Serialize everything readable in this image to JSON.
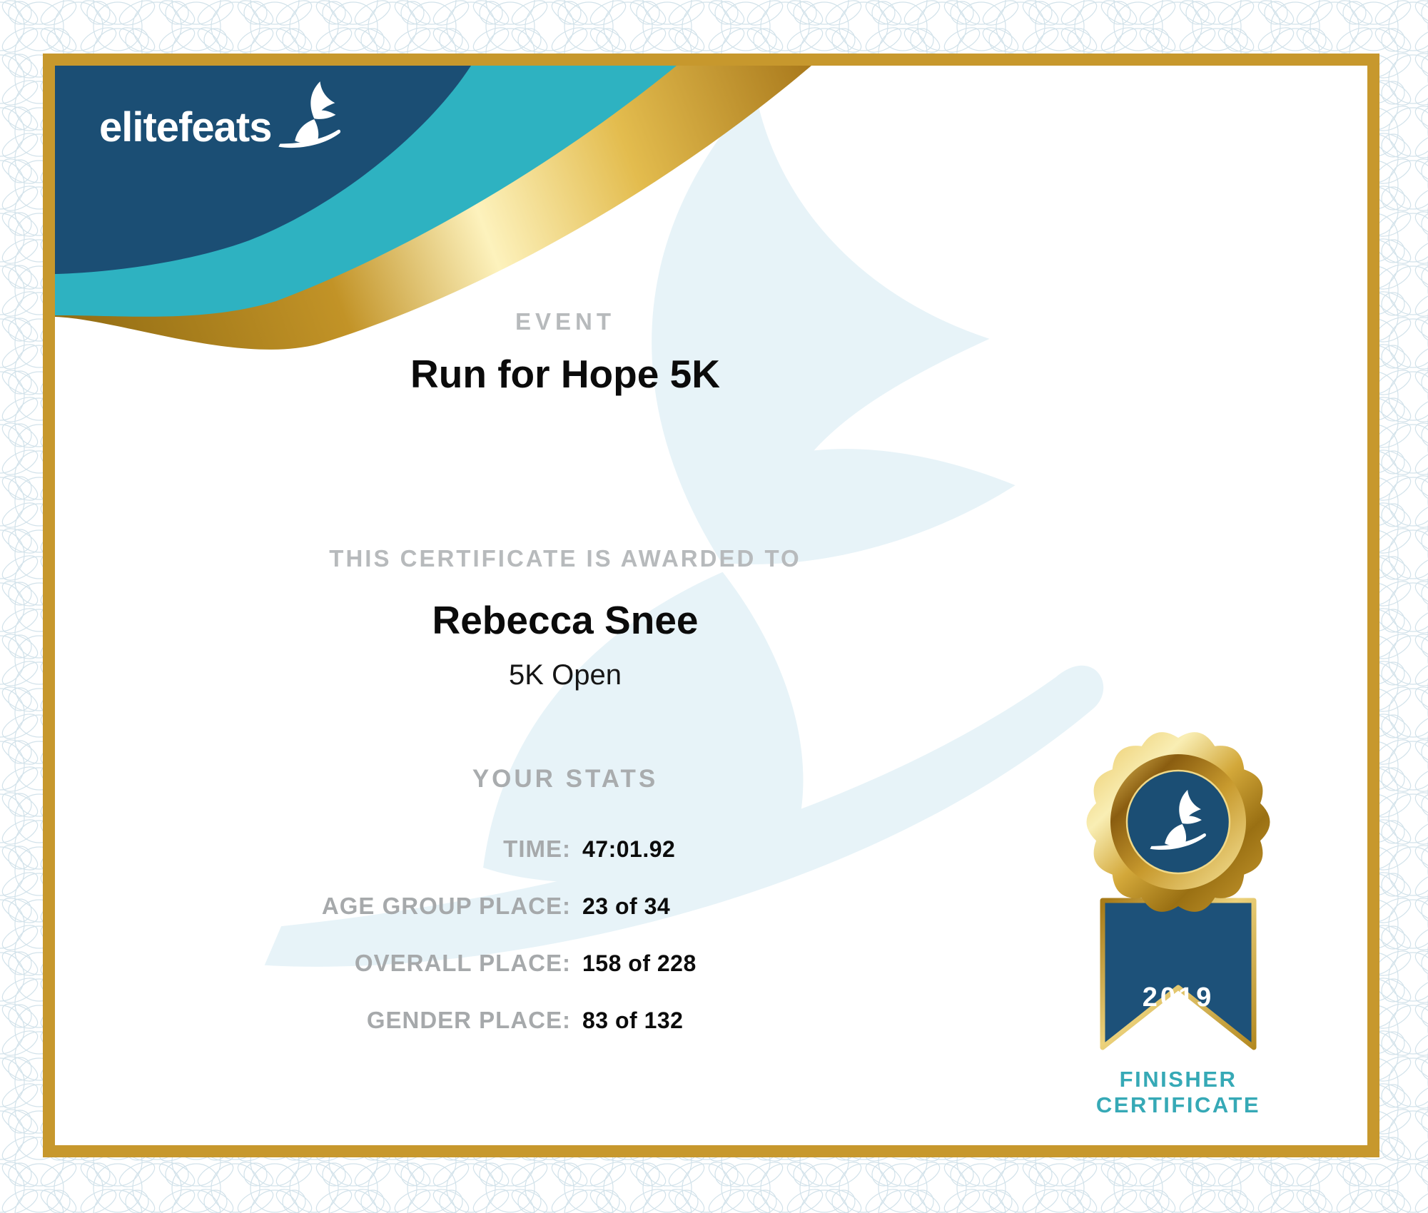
{
  "brand": {
    "name": "elitefeats",
    "icon": "winged-foot-icon"
  },
  "certificate": {
    "event_label": "EVENT",
    "event_name": "Run for Hope 5K",
    "awarded_to_label": "THIS CERTIFICATE IS AWARDED TO",
    "recipient_name": "Rebecca Snee",
    "division": "5K Open",
    "stats_heading": "YOUR STATS",
    "stats": [
      {
        "label": "TIME:",
        "value": "47:01.92"
      },
      {
        "label": "AGE GROUP PLACE:",
        "value": "23 of 34"
      },
      {
        "label": "OVERALL PLACE:",
        "value": "158 of 228"
      },
      {
        "label": "GENDER PLACE:",
        "value": "83 of 132"
      }
    ],
    "badge": {
      "year": "2019",
      "caption_line1": "FINISHER",
      "caption_line2": "CERTIFICATE",
      "icon": "winged-foot-icon"
    }
  },
  "colors": {
    "navy": "#1b4e74",
    "teal": "#2eb2c1",
    "frame_gold": "#c7982d",
    "label_gray": "#a6a9ab",
    "eyebrow_gray": "#b7babc",
    "badge_caption_teal": "#36a9b6",
    "watermark_blue": "#e7f3f8",
    "guilloche_line": "#d2e2ea"
  }
}
